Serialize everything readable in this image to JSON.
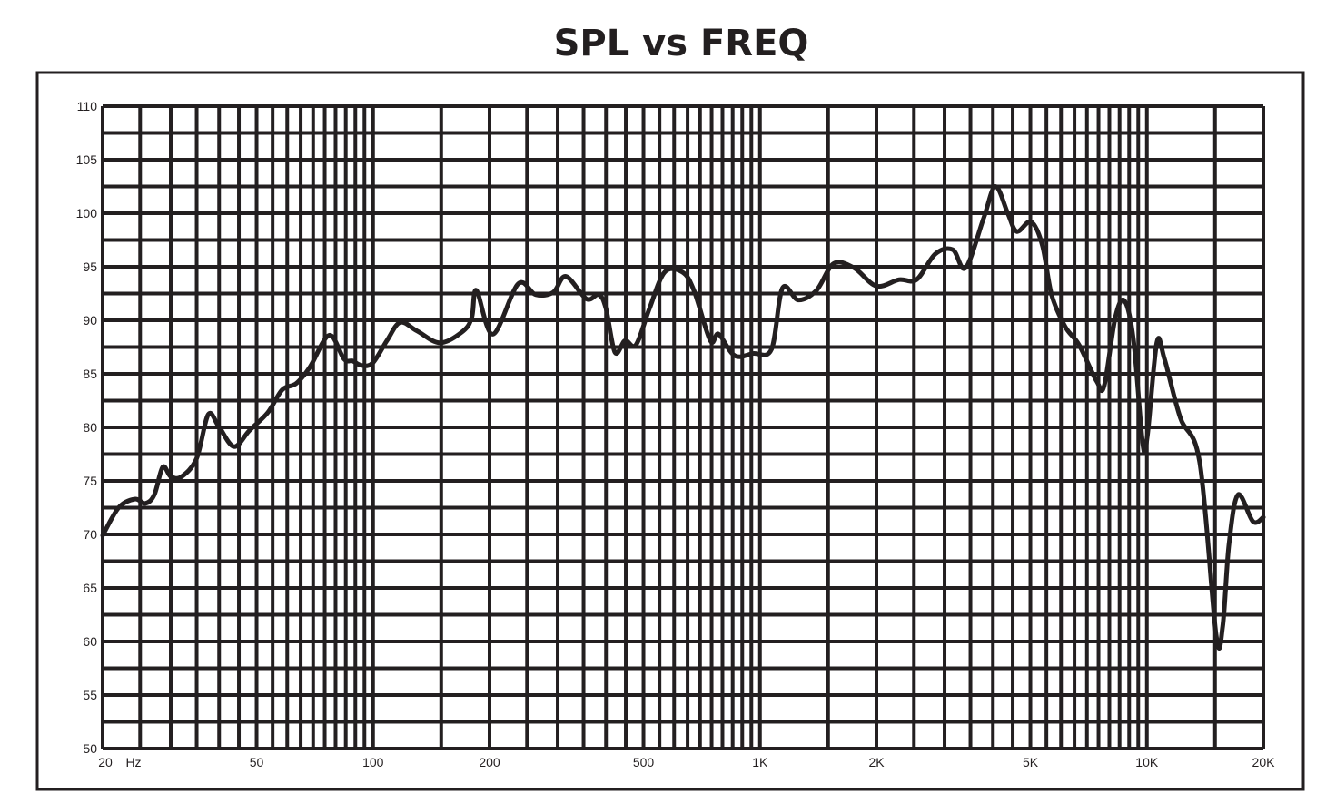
{
  "chart_data": {
    "type": "line",
    "title": "SPL vs FREQ",
    "xlabel": "Hz",
    "ylabel": "",
    "xscale": "log",
    "xlim": [
      20,
      20000
    ],
    "ylim": [
      50,
      110
    ],
    "grid": true,
    "x_tick_labels": [
      {
        "value": 20,
        "label": "20"
      },
      {
        "value": 50,
        "label": "50"
      },
      {
        "value": 100,
        "label": "100"
      },
      {
        "value": 200,
        "label": "200"
      },
      {
        "value": 500,
        "label": "500"
      },
      {
        "value": 1000,
        "label": "1K"
      },
      {
        "value": 2000,
        "label": "2K"
      },
      {
        "value": 5000,
        "label": "5K"
      },
      {
        "value": 10000,
        "label": "10K"
      },
      {
        "value": 20000,
        "label": "20K"
      }
    ],
    "y_tick_labels": [
      "50",
      "55",
      "60",
      "65",
      "70",
      "75",
      "80",
      "85",
      "90",
      "95",
      "100",
      "105",
      "110"
    ],
    "colors": {
      "line": "#231f20",
      "grid": "#231f20"
    },
    "series": [
      {
        "name": "SPL",
        "x": [
          20,
          22,
          24.2,
          25.8,
          27.2,
          28.6,
          30,
          32,
          35,
          37.5,
          39.9,
          43.7,
          47.9,
          53.5,
          58.2,
          63.3,
          68.6,
          77,
          84.1,
          88.5,
          93.2,
          99.7,
          108.6,
          117.5,
          130,
          149,
          171,
          180,
          185,
          204,
          237,
          263,
          292,
          315,
          356,
          383,
          400,
          422,
          448,
          478,
          518,
          567,
          630,
          675,
          744,
          782,
          860,
          960,
          1071,
          1143,
          1256,
          1400,
          1550,
          1750,
          2000,
          2290,
          2540,
          2840,
          3150,
          3400,
          3790,
          4060,
          4370,
          4610,
          5020,
          5370,
          5670,
          6150,
          6680,
          7420,
          7760,
          8290,
          8760,
          9240,
          9760,
          10030,
          10610,
          11100,
          12200,
          13700,
          15100,
          15700,
          16300,
          17200,
          18800,
          20000
        ],
        "y": [
          69.9,
          72.5,
          73.3,
          72.9,
          73.7,
          76.3,
          75.4,
          75.4,
          77.1,
          81.2,
          80.1,
          78.2,
          79.7,
          81.4,
          83.5,
          84.1,
          85.6,
          88.6,
          86.4,
          86.2,
          85.8,
          86,
          88.1,
          89.8,
          89,
          87.9,
          89,
          90.3,
          92.8,
          88.7,
          93.4,
          92.4,
          92.6,
          94.1,
          92,
          92.4,
          91.1,
          87,
          88.1,
          87.7,
          91.1,
          94.5,
          94.5,
          92.8,
          88.1,
          88.7,
          86.7,
          86.9,
          87.3,
          93,
          91.9,
          92.8,
          95.3,
          94.9,
          93.2,
          93.8,
          93.8,
          96.2,
          96.6,
          94.9,
          99.6,
          102.5,
          100,
          98.3,
          99.2,
          97,
          92.4,
          89.4,
          87.7,
          84.3,
          83.9,
          90.3,
          91.8,
          88.1,
          78.4,
          79.2,
          87.9,
          86.4,
          80.9,
          76.7,
          60.6,
          61.4,
          69.1,
          73.7,
          71.2,
          71.6
        ]
      }
    ]
  }
}
